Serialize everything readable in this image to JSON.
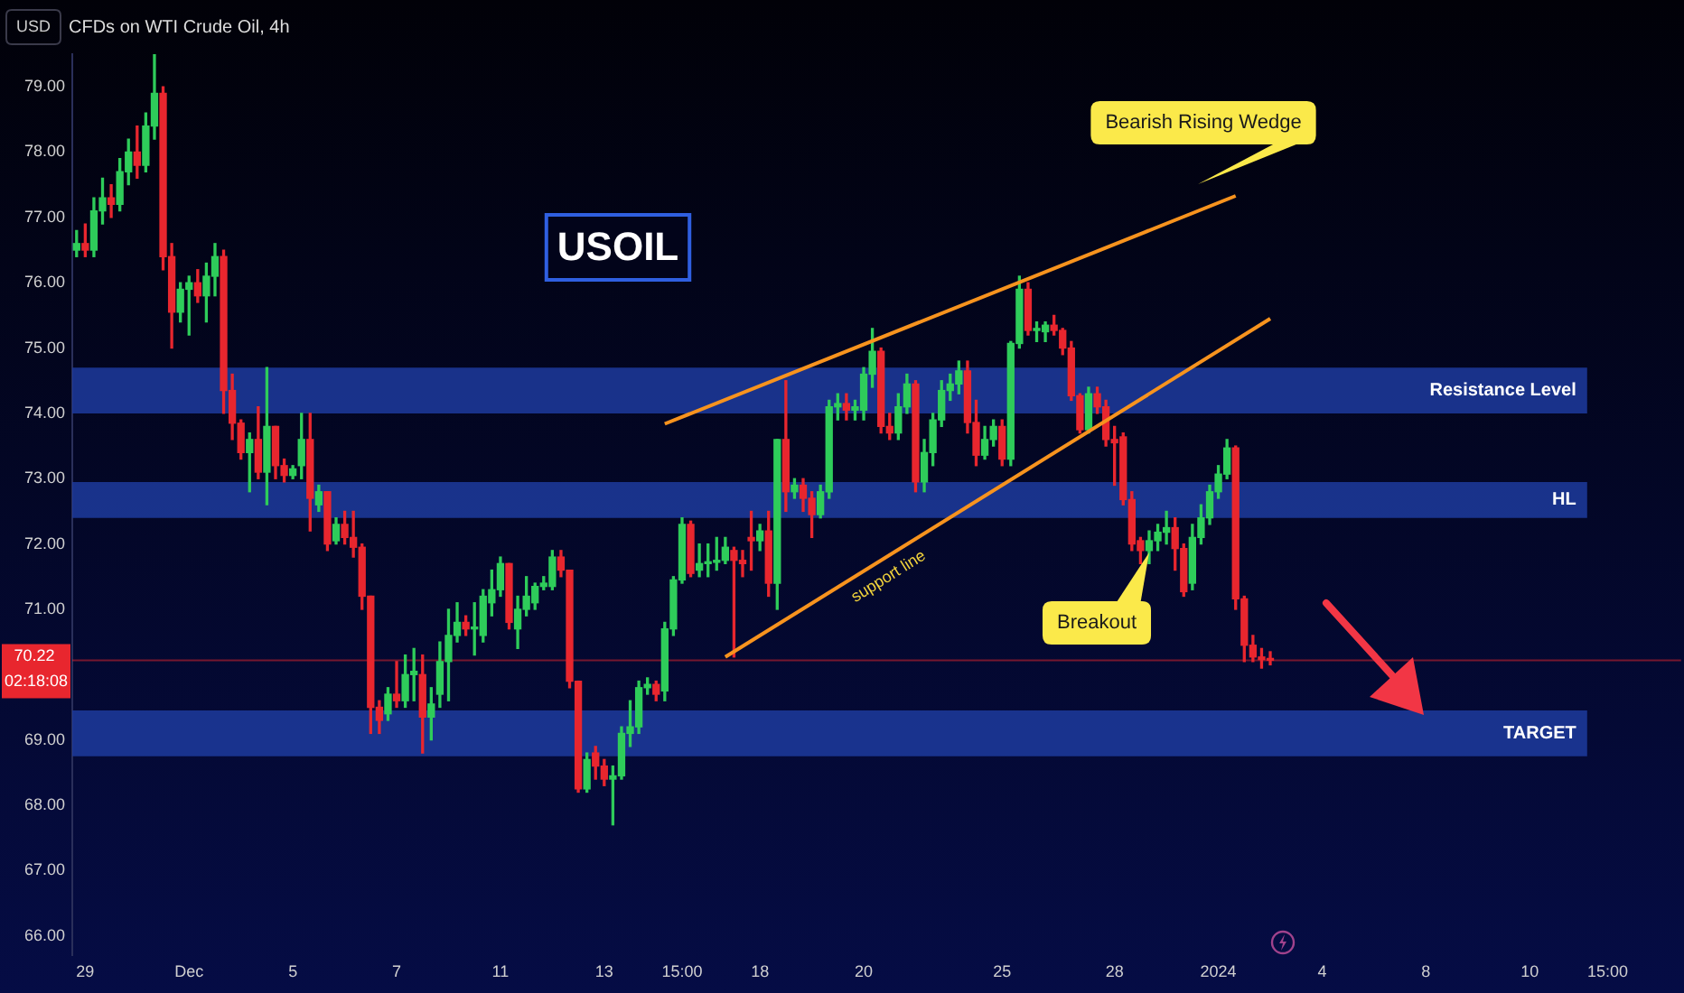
{
  "chart_data": {
    "type": "candlestick",
    "title": "CFDs on WTI Crude Oil, 4h",
    "ylabel": "USD",
    "annotations": [
      "USOIL",
      "Bearish Rising Wedge",
      "Breakout",
      "02:18:08"
    ],
    "categories": [
      null,
      "29",
      null,
      null,
      null,
      null,
      null,
      null,
      null,
      null,
      null,
      null,
      null,
      "Dec",
      null,
      null,
      null,
      null,
      null,
      null,
      null,
      null,
      null,
      null,
      null,
      "5",
      null,
      null,
      null,
      null,
      null,
      null,
      null,
      null,
      null,
      null,
      null,
      "7",
      null,
      null,
      null,
      null,
      null,
      null,
      null,
      null,
      null,
      null,
      null,
      "11",
      null,
      null,
      null,
      null,
      null,
      null,
      null,
      null,
      null,
      null,
      null,
      "13",
      null,
      null,
      null,
      null,
      null,
      null,
      null,
      null,
      "15:00",
      null,
      null,
      null,
      null,
      null,
      null,
      null,
      null,
      "18",
      null,
      null,
      null,
      null,
      null,
      null,
      null,
      null,
      null,
      null,
      null,
      "20",
      null,
      null,
      null,
      null,
      null,
      null,
      null,
      null,
      null,
      null,
      null,
      null,
      null,
      null,
      null,
      "25",
      null,
      null,
      null,
      null,
      null,
      null,
      null,
      null,
      null,
      null,
      null,
      null,
      "28",
      null,
      null,
      null,
      null,
      null,
      null,
      null,
      null,
      null,
      null,
      null,
      "2024",
      null,
      null,
      null,
      null,
      null,
      null,
      null,
      null,
      null,
      null,
      null,
      "4",
      null,
      null,
      null,
      null,
      null,
      null,
      null,
      null,
      null,
      null,
      null,
      "8",
      null,
      null,
      null,
      null,
      null,
      null,
      null,
      null,
      null,
      null,
      null,
      "10",
      null,
      null,
      null,
      null,
      null,
      null,
      null,
      null,
      "15:00",
      null,
      null,
      null,
      null,
      null,
      null,
      null,
      null
    ],
    "ohlc": [
      [
        76.5,
        76.8,
        76.4,
        76.6
      ],
      [
        76.6,
        76.9,
        76.4,
        76.5
      ],
      [
        76.5,
        77.3,
        76.4,
        77.1
      ],
      [
        77.1,
        77.6,
        76.9,
        77.3
      ],
      [
        77.3,
        77.5,
        77.0,
        77.2
      ],
      [
        77.2,
        77.9,
        77.1,
        77.7
      ],
      [
        77.7,
        78.2,
        77.5,
        78.0
      ],
      [
        78.0,
        78.4,
        77.6,
        77.8
      ],
      [
        77.8,
        78.6,
        77.7,
        78.4
      ],
      [
        78.4,
        79.5,
        78.2,
        78.9
      ],
      [
        78.9,
        79.0,
        76.2,
        76.4
      ],
      [
        76.4,
        76.6,
        75.0,
        75.55
      ],
      [
        75.55,
        76.0,
        75.4,
        75.9
      ],
      [
        75.9,
        76.1,
        75.2,
        76.0
      ],
      [
        76.0,
        76.2,
        75.7,
        75.8
      ],
      [
        75.8,
        76.3,
        75.4,
        76.1
      ],
      [
        76.1,
        76.6,
        75.8,
        76.4
      ],
      [
        76.4,
        76.5,
        74.0,
        74.35
      ],
      [
        74.35,
        74.6,
        73.6,
        73.85
      ],
      [
        73.85,
        73.9,
        73.3,
        73.4
      ],
      [
        73.4,
        73.7,
        72.8,
        73.6
      ],
      [
        73.6,
        74.1,
        73.0,
        73.1
      ],
      [
        73.1,
        74.7,
        72.6,
        73.8
      ],
      [
        73.8,
        73.8,
        73.0,
        73.2
      ],
      [
        73.2,
        73.3,
        72.95,
        73.05
      ],
      [
        73.05,
        73.2,
        73.0,
        73.15
      ],
      [
        73.2,
        74.0,
        73.0,
        73.6
      ],
      [
        73.6,
        74.0,
        72.2,
        72.7
      ],
      [
        72.6,
        72.9,
        72.5,
        72.8
      ],
      [
        72.8,
        72.8,
        71.9,
        72.0
      ],
      [
        72.05,
        72.4,
        72.0,
        72.3
      ],
      [
        72.3,
        72.5,
        72.0,
        72.1
      ],
      [
        72.1,
        72.5,
        71.8,
        71.95
      ],
      [
        71.95,
        72.0,
        71.0,
        71.2
      ],
      [
        71.2,
        71.2,
        69.1,
        69.5
      ],
      [
        69.5,
        69.6,
        69.1,
        69.3
      ],
      [
        69.4,
        69.8,
        69.3,
        69.7
      ],
      [
        69.7,
        70.2,
        69.5,
        69.6
      ],
      [
        69.6,
        70.3,
        69.5,
        70.0
      ],
      [
        70.0,
        70.4,
        69.6,
        70.05
      ],
      [
        70.0,
        70.3,
        68.8,
        69.35
      ],
      [
        69.35,
        69.8,
        69.0,
        69.55
      ],
      [
        69.7,
        70.5,
        69.5,
        70.2
      ],
      [
        70.2,
        71.0,
        69.6,
        70.6
      ],
      [
        70.6,
        71.1,
        70.5,
        70.8
      ],
      [
        70.8,
        70.9,
        70.6,
        70.7
      ],
      [
        70.7,
        71.1,
        70.3,
        70.72
      ],
      [
        70.6,
        71.3,
        70.5,
        71.2
      ],
      [
        71.1,
        71.6,
        70.9,
        71.3
      ],
      [
        71.3,
        71.8,
        71.2,
        71.7
      ],
      [
        71.7,
        71.7,
        70.7,
        70.8
      ],
      [
        70.7,
        71.2,
        70.4,
        71.0
      ],
      [
        71.0,
        71.5,
        70.9,
        71.2
      ],
      [
        71.1,
        71.4,
        71.0,
        71.35
      ],
      [
        71.35,
        71.5,
        71.3,
        71.4
      ],
      [
        71.35,
        71.9,
        71.3,
        71.8
      ],
      [
        71.8,
        71.9,
        71.5,
        71.6
      ],
      [
        71.6,
        71.6,
        69.8,
        69.9
      ],
      [
        69.9,
        69.9,
        68.2,
        68.25
      ],
      [
        68.25,
        68.8,
        68.2,
        68.7
      ],
      [
        68.8,
        68.9,
        68.4,
        68.6
      ],
      [
        68.6,
        68.7,
        68.3,
        68.4
      ],
      [
        68.4,
        68.6,
        67.7,
        68.45
      ],
      [
        68.45,
        69.2,
        68.4,
        69.1
      ],
      [
        69.1,
        69.6,
        68.9,
        69.2
      ],
      [
        69.2,
        69.9,
        69.1,
        69.8
      ],
      [
        69.8,
        69.95,
        69.7,
        69.85
      ],
      [
        69.85,
        69.9,
        69.6,
        69.7
      ],
      [
        69.75,
        70.8,
        69.6,
        70.7
      ],
      [
        70.7,
        71.5,
        70.6,
        71.45
      ],
      [
        71.45,
        72.4,
        71.4,
        72.3
      ],
      [
        72.3,
        72.35,
        71.5,
        71.55
      ],
      [
        71.6,
        72.0,
        71.5,
        71.7
      ],
      [
        71.7,
        72.0,
        71.5,
        71.72
      ],
      [
        71.72,
        72.1,
        71.6,
        71.75
      ],
      [
        71.75,
        72.1,
        71.7,
        71.95
      ],
      [
        71.9,
        71.95,
        70.27,
        71.75
      ],
      [
        71.75,
        71.9,
        71.5,
        71.7
      ],
      [
        72.1,
        72.5,
        71.6,
        72.05
      ],
      [
        72.05,
        72.3,
        71.9,
        72.2
      ],
      [
        72.2,
        72.5,
        71.2,
        71.4
      ],
      [
        71.4,
        73.6,
        71.0,
        73.6
      ],
      [
        73.6,
        74.5,
        72.5,
        72.8
      ],
      [
        72.8,
        73.0,
        72.7,
        72.9
      ],
      [
        72.9,
        73.0,
        72.5,
        72.7
      ],
      [
        72.7,
        72.8,
        72.1,
        72.45
      ],
      [
        72.45,
        72.9,
        72.4,
        72.8
      ],
      [
        72.8,
        74.2,
        72.7,
        74.1
      ],
      [
        74.1,
        74.3,
        73.9,
        74.15
      ],
      [
        74.15,
        74.3,
        73.9,
        74.05
      ],
      [
        74.05,
        74.2,
        73.9,
        74.1
      ],
      [
        74.05,
        74.7,
        73.9,
        74.6
      ],
      [
        74.6,
        75.3,
        74.4,
        74.95
      ],
      [
        74.95,
        75.0,
        73.7,
        73.8
      ],
      [
        73.8,
        74.0,
        73.6,
        73.7
      ],
      [
        73.7,
        74.3,
        73.6,
        74.1
      ],
      [
        74.1,
        74.6,
        74.0,
        74.45
      ],
      [
        74.45,
        74.5,
        72.8,
        72.95
      ],
      [
        72.95,
        73.6,
        72.8,
        73.4
      ],
      [
        73.4,
        74.0,
        73.2,
        73.9
      ],
      [
        73.9,
        74.5,
        73.8,
        74.35
      ],
      [
        74.35,
        74.6,
        74.2,
        74.45
      ],
      [
        74.45,
        74.8,
        74.3,
        74.65
      ],
      [
        74.65,
        74.8,
        73.7,
        73.86
      ],
      [
        73.86,
        74.2,
        73.2,
        73.36
      ],
      [
        73.36,
        73.8,
        73.3,
        73.6
      ],
      [
        73.6,
        73.9,
        73.5,
        73.8
      ],
      [
        73.8,
        73.9,
        73.2,
        73.3
      ],
      [
        73.3,
        75.1,
        73.2,
        75.07
      ],
      [
        75.07,
        76.1,
        75.0,
        75.9
      ],
      [
        75.9,
        76.0,
        75.2,
        75.27
      ],
      [
        75.27,
        75.4,
        75.1,
        75.3
      ],
      [
        75.25,
        75.4,
        75.1,
        75.35
      ],
      [
        75.35,
        75.5,
        75.2,
        75.27
      ],
      [
        75.27,
        75.3,
        74.9,
        75.0
      ],
      [
        75.0,
        75.1,
        74.2,
        74.27
      ],
      [
        74.27,
        74.3,
        73.7,
        73.75
      ],
      [
        73.75,
        74.4,
        73.7,
        74.3
      ],
      [
        74.3,
        74.4,
        74.0,
        74.1
      ],
      [
        74.1,
        74.2,
        73.5,
        73.6
      ],
      [
        73.6,
        73.8,
        72.9,
        73.55
      ],
      [
        73.64,
        73.7,
        72.6,
        72.68
      ],
      [
        72.68,
        72.8,
        71.9,
        72.0
      ],
      [
        72.05,
        72.1,
        71.7,
        71.9
      ],
      [
        71.9,
        72.2,
        71.7,
        72.05
      ],
      [
        72.05,
        72.3,
        71.9,
        72.18
      ],
      [
        72.18,
        72.5,
        72.0,
        72.25
      ],
      [
        72.25,
        72.4,
        71.6,
        71.93
      ],
      [
        71.93,
        72.0,
        71.2,
        71.27
      ],
      [
        71.4,
        72.3,
        71.3,
        72.1
      ],
      [
        72.1,
        72.6,
        72.0,
        72.4
      ],
      [
        72.4,
        72.9,
        72.3,
        72.8
      ],
      [
        72.8,
        73.2,
        72.7,
        73.07
      ],
      [
        73.07,
        73.6,
        73.0,
        73.47
      ],
      [
        73.47,
        73.5,
        71.0,
        71.16
      ],
      [
        71.16,
        71.2,
        70.2,
        70.45
      ],
      [
        70.45,
        70.6,
        70.2,
        70.27
      ],
      [
        70.27,
        70.4,
        70.1,
        70.23
      ],
      [
        70.23,
        70.35,
        70.15,
        70.22
      ],
      null,
      null,
      null,
      null,
      null,
      null,
      null,
      null,
      null,
      null,
      null,
      null,
      null,
      null,
      null,
      null,
      null,
      null,
      null,
      null,
      null,
      null,
      null,
      null,
      null,
      null,
      null,
      null,
      null,
      null,
      null,
      null,
      null,
      null,
      null,
      null,
      null,
      null,
      null,
      null,
      null,
      null,
      null,
      null,
      null,
      null,
      null
    ],
    "colors": [
      "#2ecc5a",
      "#e8262e",
      "#2ecc5a",
      "#2ecc5a",
      "#e8262e",
      "#2ecc5a",
      "#2ecc5a",
      "#e8262e",
      "#2ecc5a",
      "#2ecc5a",
      "#e8262e",
      "#e8262e",
      "#2ecc5a",
      "#2ecc5a",
      "#e8262e",
      "#2ecc5a",
      "#2ecc5a",
      "#e8262e",
      "#e8262e",
      "#e8262e",
      "#2ecc5a",
      "#e8262e",
      "#2ecc5a",
      "#e8262e",
      "#e8262e",
      "#2ecc5a",
      "#2ecc5a",
      "#e8262e",
      "#2ecc5a",
      "#e8262e",
      "#2ecc5a",
      "#e8262e",
      "#e8262e",
      "#e8262e",
      "#e8262e",
      "#e8262e",
      "#2ecc5a",
      "#e8262e",
      "#2ecc5a",
      "#2ecc5a",
      "#e8262e",
      "#2ecc5a",
      "#2ecc5a",
      "#2ecc5a",
      "#2ecc5a",
      "#e8262e",
      "#2ecc5a",
      "#2ecc5a",
      "#2ecc5a",
      "#2ecc5a",
      "#e8262e",
      "#2ecc5a",
      "#2ecc5a",
      "#2ecc5a",
      "#2ecc5a",
      "#2ecc5a",
      "#e8262e",
      "#e8262e",
      "#e8262e",
      "#2ecc5a",
      "#e8262e",
      "#e8262e",
      "#2ecc5a",
      "#2ecc5a",
      "#2ecc5a",
      "#2ecc5a",
      "#2ecc5a",
      "#e8262e",
      "#2ecc5a",
      "#2ecc5a",
      "#2ecc5a",
      "#e8262e",
      "#2ecc5a",
      "#2ecc5a",
      "#2ecc5a",
      "#2ecc5a",
      "#e8262e",
      "#e8262e",
      "#e8262e",
      "#2ecc5a",
      "#e8262e",
      "#2ecc5a",
      "#e8262e",
      "#2ecc5a",
      "#e8262e",
      "#e8262e",
      "#2ecc5a",
      "#2ecc5a",
      "#2ecc5a",
      "#e8262e",
      "#2ecc5a",
      "#2ecc5a",
      "#2ecc5a",
      "#e8262e",
      "#e8262e",
      "#2ecc5a",
      "#2ecc5a",
      "#e8262e",
      "#2ecc5a",
      "#2ecc5a",
      "#2ecc5a",
      "#2ecc5a",
      "#2ecc5a",
      "#e8262e",
      "#e8262e",
      "#2ecc5a",
      "#2ecc5a",
      "#e8262e",
      "#2ecc5a",
      "#2ecc5a",
      "#e8262e",
      "#2ecc5a",
      "#2ecc5a",
      "#e8262e",
      "#e8262e",
      "#e8262e",
      "#e8262e",
      "#2ecc5a",
      "#e8262e",
      "#e8262e",
      "#e8262e",
      "#e8262e",
      "#e8262e",
      "#e8262e",
      "#2ecc5a",
      "#2ecc5a",
      "#2ecc5a",
      "#e8262e",
      "#e8262e",
      "#2ecc5a",
      "#2ecc5a",
      "#2ecc5a",
      "#2ecc5a",
      "#2ecc5a",
      "#e8262e",
      "#e8262e",
      "#e8262e",
      "#e8262e",
      "#e8262e",
      null,
      null,
      null,
      null,
      null,
      null,
      null,
      null,
      null,
      null,
      null,
      null,
      null,
      null,
      null,
      null,
      null,
      null,
      null,
      null,
      null,
      null,
      null,
      null,
      null,
      null,
      null,
      null,
      null,
      null,
      null,
      null,
      null,
      null,
      null,
      null,
      null,
      null,
      null,
      null,
      null,
      null,
      null,
      null,
      null,
      null,
      null
    ],
    "series": [
      {
        "type": "line",
        "color": "#f7931e",
        "values": [
          null,
          null,
          null,
          null,
          null,
          null,
          null,
          null,
          null,
          null,
          null,
          null,
          null,
          null,
          null,
          null,
          null,
          null,
          null,
          null,
          null,
          null,
          null,
          null,
          null,
          null,
          null,
          null,
          null,
          null,
          null,
          null,
          null,
          null,
          null,
          null,
          null,
          null,
          null,
          null,
          null,
          null,
          null,
          null,
          null,
          null,
          null,
          null,
          null,
          null,
          null,
          null,
          null,
          null,
          null,
          null,
          null,
          null,
          null,
          null,
          null,
          null,
          null,
          null,
          null,
          null,
          null,
          null,
          73.84,
          null,
          null,
          null,
          null,
          null,
          null,
          null,
          null,
          null,
          null,
          null,
          null,
          null,
          null,
          null,
          null,
          null,
          null,
          null,
          null,
          null,
          null,
          null,
          null,
          null,
          null,
          null,
          null,
          null,
          null,
          null,
          null,
          null,
          null,
          null,
          null,
          null,
          null,
          null,
          null,
          null,
          null,
          null,
          null,
          null,
          null,
          null,
          null,
          null,
          null,
          null,
          null,
          null,
          null,
          null,
          null,
          null,
          null,
          null,
          null,
          null,
          null,
          null,
          null,
          null,
          77.33,
          null,
          null,
          null,
          null,
          null,
          null,
          null,
          null,
          null,
          null,
          null,
          null,
          null,
          null,
          null,
          null,
          null,
          null,
          null,
          null,
          null,
          null,
          null,
          null,
          null,
          null,
          null,
          null,
          null,
          null,
          null,
          null,
          null,
          null,
          null,
          null,
          null,
          null,
          null,
          null,
          null,
          null,
          null,
          null,
          null,
          null,
          null,
          null,
          null,
          null,
          null
        ]
      },
      {
        "type": "line",
        "name": "support line",
        "color": "#f7931e",
        "values": [
          null,
          null,
          null,
          null,
          null,
          null,
          null,
          null,
          null,
          null,
          null,
          null,
          null,
          null,
          null,
          null,
          null,
          null,
          null,
          null,
          null,
          null,
          null,
          null,
          null,
          null,
          null,
          null,
          null,
          null,
          null,
          null,
          null,
          null,
          null,
          null,
          null,
          null,
          null,
          null,
          null,
          null,
          null,
          null,
          null,
          null,
          null,
          null,
          null,
          null,
          null,
          null,
          null,
          null,
          null,
          null,
          null,
          null,
          null,
          null,
          null,
          null,
          null,
          null,
          null,
          null,
          null,
          null,
          null,
          null,
          null,
          null,
          null,
          null,
          null,
          70.27,
          null,
          null,
          null,
          null,
          null,
          null,
          null,
          null,
          null,
          null,
          null,
          null,
          null,
          null,
          null,
          null,
          null,
          null,
          null,
          null,
          null,
          null,
          null,
          null,
          null,
          null,
          null,
          null,
          null,
          null,
          null,
          null,
          null,
          null,
          null,
          null,
          null,
          null,
          null,
          null,
          null,
          null,
          null,
          null,
          null,
          null,
          null,
          null,
          null,
          null,
          null,
          null,
          null,
          null,
          null,
          null,
          null,
          null,
          null,
          null,
          null,
          null,
          75.45,
          null,
          null,
          null,
          null,
          null,
          null,
          null,
          null,
          null,
          null,
          null,
          null,
          null,
          null,
          null,
          null,
          null,
          null,
          null,
          null,
          null,
          null,
          null,
          null,
          null,
          null,
          null,
          null,
          null,
          null,
          null,
          null,
          null,
          null,
          null,
          null,
          null,
          null,
          null,
          null,
          null,
          null,
          null,
          null,
          null,
          null,
          null
        ]
      }
    ],
    "ylim": [
      65.7,
      79.5
    ],
    "yticks": [
      {
        "value": 66,
        "label": "66.00"
      },
      {
        "value": 67,
        "label": "67.00"
      },
      {
        "value": 68,
        "label": "68.00"
      },
      {
        "value": 69,
        "label": "69.00"
      },
      {
        "value": 71,
        "label": "71.00"
      },
      {
        "value": 72,
        "label": "72.00"
      },
      {
        "value": 73,
        "label": "73.00"
      },
      {
        "value": 74,
        "label": "74.00"
      },
      {
        "value": 75,
        "label": "75.00"
      },
      {
        "value": 76,
        "label": "76.00"
      },
      {
        "value": 77,
        "label": "77.00"
      },
      {
        "value": 78,
        "label": "78.00"
      },
      {
        "value": 79,
        "label": "79.00"
      }
    ],
    "bands": [
      {
        "axis": "y",
        "from": 74.0,
        "to": 74.7,
        "label": "Resistance Level",
        "color": "#1d3b9e"
      },
      {
        "axis": "y",
        "from": 72.4,
        "to": 72.95,
        "label": "HL",
        "color": "#1d3b9e"
      },
      {
        "axis": "y",
        "from": 68.75,
        "to": 69.45,
        "label": "TARGET",
        "color": "#1d3b9e"
      }
    ],
    "ref_lines": [
      {
        "axis": "y",
        "value": 70.22,
        "label": "70.22",
        "color": "#e8262e"
      }
    ]
  }
}
